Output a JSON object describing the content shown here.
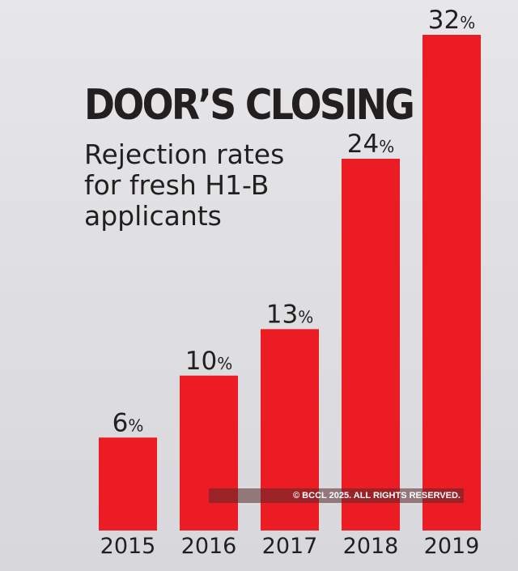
{
  "chart_data": {
    "type": "bar",
    "title": "DOOR’S CLOSING",
    "subtitle": "Rejection rates for fresh H1-B applicants",
    "categories": [
      "2015",
      "2016",
      "2017",
      "2018",
      "2019"
    ],
    "values": [
      6,
      10,
      13,
      24,
      32
    ],
    "value_labels": [
      "6",
      "10",
      "13",
      "24",
      "32"
    ],
    "unit": "%",
    "ylim": [
      0,
      32
    ],
    "grid": false,
    "legend": "none",
    "bar_color": "#ec1c24"
  },
  "watermark": "© BCCL 2025. ALL RIGHTS RESERVED."
}
